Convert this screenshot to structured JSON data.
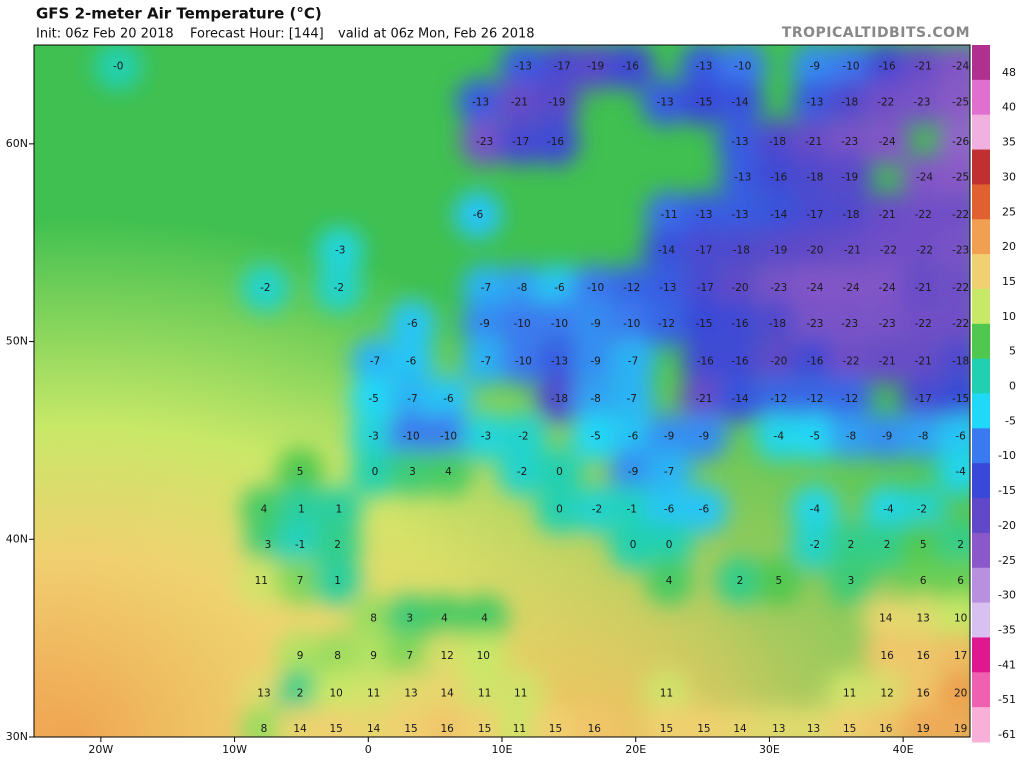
{
  "map": {
    "title": "GFS 2-meter Air Temperature (°C)",
    "init": "Init: 06z Feb 20 2018",
    "forecast_hour": "Forecast Hour: [144]",
    "valid": "valid at 06z Mon, Feb 26 2018",
    "watermark": "TROPICALTIDBITS.COM",
    "lonlim": [
      -25,
      45
    ],
    "latlim": [
      30,
      65
    ],
    "xticks": [
      {
        "value": -20,
        "label": "20W"
      },
      {
        "value": -10,
        "label": "10W"
      },
      0,
      {
        "value": 10,
        "label": "10E"
      },
      {
        "value": 20,
        "label": "20E"
      },
      {
        "value": 30,
        "label": "30E"
      },
      {
        "value": 40,
        "label": "40E"
      }
    ],
    "yticks": [
      {
        "value": 60,
        "label": "60N"
      },
      {
        "value": 50,
        "label": "50N"
      },
      {
        "value": 40,
        "label": "40N"
      },
      {
        "value": 30,
        "label": "30N"
      }
    ],
    "colorbar": {
      "ticks": [
        48,
        40,
        35,
        30,
        25,
        20,
        15,
        10,
        5,
        0,
        -5,
        -10,
        -15,
        -20,
        -25,
        -30,
        -35,
        -41,
        -51,
        -61
      ],
      "colors": [
        "#b03090",
        "#e070d0",
        "#f0b0e0",
        "#c03030",
        "#e06030",
        "#f0a050",
        "#f0d070",
        "#c8e868",
        "#50c850",
        "#20d0b0",
        "#20d8f8",
        "#3a7af0",
        "#3848d8",
        "#6048c8",
        "#8a58c8",
        "#b890e0",
        "#d8c0f0",
        "#e01890",
        "#f060b0",
        "#f8b0d8"
      ]
    },
    "stations": [
      {
        "lon": -18.7,
        "lat": 63.9,
        "t": {
          "value": 0,
          "label": "-0"
        }
      },
      {
        "lon": 11.6,
        "lat": 63.9,
        "t": -13
      },
      {
        "lon": 14.5,
        "lat": 63.9,
        "t": -17
      },
      {
        "lon": 17,
        "lat": 63.9,
        "t": -19
      },
      {
        "lon": 19.6,
        "lat": 63.9,
        "t": -16
      },
      {
        "lon": 25.1,
        "lat": 63.9,
        "t": -13
      },
      {
        "lon": 28,
        "lat": 63.9,
        "t": -10
      },
      {
        "lon": 33.4,
        "lat": 63.9,
        "t": -9
      },
      {
        "lon": 36.1,
        "lat": 63.9,
        "t": -10
      },
      {
        "lon": 38.8,
        "lat": 63.9,
        "t": -16
      },
      {
        "lon": 41.5,
        "lat": 63.9,
        "t": -21
      },
      {
        "lon": 44.3,
        "lat": 63.9,
        "t": -24
      },
      {
        "lon": 8.4,
        "lat": 62.1,
        "t": -13
      },
      {
        "lon": 11.3,
        "lat": 62.1,
        "t": -21
      },
      {
        "lon": 14.1,
        "lat": 62.1,
        "t": -19
      },
      {
        "lon": 22.2,
        "lat": 62.1,
        "t": -13
      },
      {
        "lon": 25.1,
        "lat": 62.1,
        "t": -15
      },
      {
        "lon": 27.8,
        "lat": 62.1,
        "t": -14
      },
      {
        "lon": 33.4,
        "lat": 62.1,
        "t": -13
      },
      {
        "lon": 36,
        "lat": 62.1,
        "t": -18
      },
      {
        "lon": 38.7,
        "lat": 62.1,
        "t": -22
      },
      {
        "lon": 41.4,
        "lat": 62.1,
        "t": -23
      },
      {
        "lon": 44.3,
        "lat": 62.1,
        "t": -25
      },
      {
        "lon": 8.7,
        "lat": 60.1,
        "t": -23
      },
      {
        "lon": 11.4,
        "lat": 60.1,
        "t": -17
      },
      {
        "lon": 14,
        "lat": 60.1,
        "t": -16
      },
      {
        "lon": 27.8,
        "lat": 60.1,
        "t": -13
      },
      {
        "lon": 30.6,
        "lat": 60.1,
        "t": -18
      },
      {
        "lon": 33.3,
        "lat": 60.1,
        "t": -21
      },
      {
        "lon": 36,
        "lat": 60.1,
        "t": -23
      },
      {
        "lon": 38.8,
        "lat": 60.1,
        "t": -24
      },
      {
        "lon": 44.3,
        "lat": 60.1,
        "t": -26
      },
      {
        "lon": 28,
        "lat": 58.3,
        "t": -13
      },
      {
        "lon": 30.7,
        "lat": 58.3,
        "t": -16
      },
      {
        "lon": 33.4,
        "lat": 58.3,
        "t": -18
      },
      {
        "lon": 36,
        "lat": 58.3,
        "t": -19
      },
      {
        "lon": 41.6,
        "lat": 58.3,
        "t": -24
      },
      {
        "lon": 44.3,
        "lat": 58.3,
        "t": -25
      },
      {
        "lon": 8.2,
        "lat": 56.4,
        "t": -6
      },
      {
        "lon": 22.5,
        "lat": 56.4,
        "t": -11
      },
      {
        "lon": 25.1,
        "lat": 56.4,
        "t": -13
      },
      {
        "lon": 27.8,
        "lat": 56.4,
        "t": -13
      },
      {
        "lon": 30.7,
        "lat": 56.4,
        "t": -14
      },
      {
        "lon": 33.4,
        "lat": 56.4,
        "t": -17
      },
      {
        "lon": 36.1,
        "lat": 56.4,
        "t": -18
      },
      {
        "lon": 38.8,
        "lat": 56.4,
        "t": -21
      },
      {
        "lon": 41.5,
        "lat": 56.4,
        "t": -22
      },
      {
        "lon": 44.3,
        "lat": 56.4,
        "t": -22
      },
      {
        "lon": -2.1,
        "lat": 54.6,
        "t": -3
      },
      {
        "lon": 22.3,
        "lat": 54.6,
        "t": -14
      },
      {
        "lon": 25.1,
        "lat": 54.6,
        "t": -17
      },
      {
        "lon": 27.9,
        "lat": 54.6,
        "t": -18
      },
      {
        "lon": 30.7,
        "lat": 54.6,
        "t": -19
      },
      {
        "lon": 33.4,
        "lat": 54.6,
        "t": -20
      },
      {
        "lon": 36.2,
        "lat": 54.6,
        "t": -21
      },
      {
        "lon": 38.9,
        "lat": 54.6,
        "t": -22
      },
      {
        "lon": 41.6,
        "lat": 54.6,
        "t": -22
      },
      {
        "lon": 44.3,
        "lat": 54.6,
        "t": -23
      },
      {
        "lon": -7.7,
        "lat": 52.7,
        "t": -2
      },
      {
        "lon": -2.2,
        "lat": 52.7,
        "t": -2
      },
      {
        "lon": 8.8,
        "lat": 52.7,
        "t": -7
      },
      {
        "lon": 11.5,
        "lat": 52.7,
        "t": -8
      },
      {
        "lon": 14.3,
        "lat": 52.7,
        "t": -6
      },
      {
        "lon": 17,
        "lat": 52.7,
        "t": -10
      },
      {
        "lon": 19.7,
        "lat": 52.7,
        "t": -12
      },
      {
        "lon": 22.4,
        "lat": 52.7,
        "t": -13
      },
      {
        "lon": 25.2,
        "lat": 52.7,
        "t": -17
      },
      {
        "lon": 27.8,
        "lat": 52.7,
        "t": -20
      },
      {
        "lon": 30.7,
        "lat": 52.7,
        "t": -23
      },
      {
        "lon": 33.4,
        "lat": 52.7,
        "t": -24
      },
      {
        "lon": 36.1,
        "lat": 52.7,
        "t": -24
      },
      {
        "lon": 38.8,
        "lat": 52.7,
        "t": -24
      },
      {
        "lon": 41.5,
        "lat": 52.7,
        "t": -21
      },
      {
        "lon": 44.3,
        "lat": 52.7,
        "t": -22
      },
      {
        "lon": 3.3,
        "lat": 50.9,
        "t": -6
      },
      {
        "lon": 8.7,
        "lat": 50.9,
        "t": -9
      },
      {
        "lon": 11.5,
        "lat": 50.9,
        "t": -10
      },
      {
        "lon": 14.3,
        "lat": 50.9,
        "t": -10
      },
      {
        "lon": 17,
        "lat": 50.9,
        "t": -9
      },
      {
        "lon": 19.7,
        "lat": 50.9,
        "t": -10
      },
      {
        "lon": 22.3,
        "lat": 50.9,
        "t": -12
      },
      {
        "lon": 25.1,
        "lat": 50.9,
        "t": -15
      },
      {
        "lon": 27.8,
        "lat": 50.9,
        "t": -16
      },
      {
        "lon": 30.6,
        "lat": 50.9,
        "t": -18
      },
      {
        "lon": 33.4,
        "lat": 50.9,
        "t": -23
      },
      {
        "lon": 36,
        "lat": 50.9,
        "t": -23
      },
      {
        "lon": 38.8,
        "lat": 50.9,
        "t": -23
      },
      {
        "lon": 41.5,
        "lat": 50.9,
        "t": -22
      },
      {
        "lon": 44.3,
        "lat": 50.9,
        "t": -22
      },
      {
        "lon": 0.5,
        "lat": 49,
        "t": -7
      },
      {
        "lon": 3.2,
        "lat": 49,
        "t": -6
      },
      {
        "lon": 8.8,
        "lat": 49,
        "t": -7
      },
      {
        "lon": 11.6,
        "lat": 49,
        "t": -10
      },
      {
        "lon": 14.3,
        "lat": 49,
        "t": -13
      },
      {
        "lon": 17,
        "lat": 49,
        "t": -9
      },
      {
        "lon": 19.8,
        "lat": 49,
        "t": -7
      },
      {
        "lon": 25.2,
        "lat": 49,
        "t": -16
      },
      {
        "lon": 27.8,
        "lat": 49,
        "t": -16
      },
      {
        "lon": 30.7,
        "lat": 49,
        "t": -20
      },
      {
        "lon": 33.4,
        "lat": 49,
        "t": -16
      },
      {
        "lon": 36.1,
        "lat": 49,
        "t": -22
      },
      {
        "lon": 38.8,
        "lat": 49,
        "t": -21
      },
      {
        "lon": 41.5,
        "lat": 49,
        "t": -21
      },
      {
        "lon": 44.3,
        "lat": 49,
        "t": -18
      },
      {
        "lon": 0.4,
        "lat": 47.1,
        "t": -5
      },
      {
        "lon": 3.3,
        "lat": 47.1,
        "t": -7
      },
      {
        "lon": 6,
        "lat": 47.1,
        "t": -6
      },
      {
        "lon": 14.3,
        "lat": 47.1,
        "t": -18
      },
      {
        "lon": 17,
        "lat": 47.1,
        "t": -8
      },
      {
        "lon": 19.7,
        "lat": 47.1,
        "t": -7
      },
      {
        "lon": 25.1,
        "lat": 47.1,
        "t": -21
      },
      {
        "lon": 27.8,
        "lat": 47.1,
        "t": -14
      },
      {
        "lon": 30.7,
        "lat": 47.1,
        "t": -12
      },
      {
        "lon": 33.4,
        "lat": 47.1,
        "t": -12
      },
      {
        "lon": 36,
        "lat": 47.1,
        "t": -12
      },
      {
        "lon": 41.5,
        "lat": 47.1,
        "t": -17
      },
      {
        "lon": 44.3,
        "lat": 47.1,
        "t": -15
      },
      {
        "lon": 0.4,
        "lat": 45.2,
        "t": -3
      },
      {
        "lon": 3.2,
        "lat": 45.2,
        "t": -10
      },
      {
        "lon": 6,
        "lat": 45.2,
        "t": -10
      },
      {
        "lon": 8.8,
        "lat": 45.2,
        "t": -3
      },
      {
        "lon": 11.6,
        "lat": 45.2,
        "t": -2
      },
      {
        "lon": 17,
        "lat": 45.2,
        "t": -5
      },
      {
        "lon": 19.8,
        "lat": 45.2,
        "t": -6
      },
      {
        "lon": 22.5,
        "lat": 45.2,
        "t": -9
      },
      {
        "lon": 25.1,
        "lat": 45.2,
        "t": -9
      },
      {
        "lon": 30.7,
        "lat": 45.2,
        "t": -4
      },
      {
        "lon": 33.4,
        "lat": 45.2,
        "t": -5
      },
      {
        "lon": 36.1,
        "lat": 45.2,
        "t": -8
      },
      {
        "lon": 38.8,
        "lat": 45.2,
        "t": -9
      },
      {
        "lon": 41.5,
        "lat": 45.2,
        "t": -8
      },
      {
        "lon": 44.3,
        "lat": 45.2,
        "t": -6
      },
      {
        "lon": -5.1,
        "lat": 43.4,
        "t": 5
      },
      {
        "lon": 0.5,
        "lat": 43.4,
        "t": 0
      },
      {
        "lon": 3.3,
        "lat": 43.4,
        "t": 3
      },
      {
        "lon": 6,
        "lat": 43.4,
        "t": 4
      },
      {
        "lon": 11.5,
        "lat": 43.4,
        "t": -2
      },
      {
        "lon": 14.3,
        "lat": 43.4,
        "t": 0
      },
      {
        "lon": 19.8,
        "lat": 43.4,
        "t": -9
      },
      {
        "lon": 22.5,
        "lat": 43.4,
        "t": -7
      },
      {
        "lon": 44.3,
        "lat": 43.4,
        "t": -4
      },
      {
        "lon": -7.8,
        "lat": 41.5,
        "t": 4
      },
      {
        "lon": -5,
        "lat": 41.5,
        "t": 1
      },
      {
        "lon": -2.2,
        "lat": 41.5,
        "t": 1
      },
      {
        "lon": 14.3,
        "lat": 41.5,
        "t": 0
      },
      {
        "lon": 17.1,
        "lat": 41.5,
        "t": -2
      },
      {
        "lon": 19.7,
        "lat": 41.5,
        "t": -1
      },
      {
        "lon": 22.5,
        "lat": 41.5,
        "t": -6
      },
      {
        "lon": 25.1,
        "lat": 41.5,
        "t": -6
      },
      {
        "lon": 33.4,
        "lat": 41.5,
        "t": -4
      },
      {
        "lon": 38.9,
        "lat": 41.5,
        "t": -4
      },
      {
        "lon": 41.4,
        "lat": 41.5,
        "t": -2
      },
      {
        "lon": -7.5,
        "lat": 39.7,
        "t": 3
      },
      {
        "lon": -5.1,
        "lat": 39.7,
        "t": -1
      },
      {
        "lon": -2.3,
        "lat": 39.7,
        "t": 2
      },
      {
        "lon": 19.8,
        "lat": 39.7,
        "t": 0
      },
      {
        "lon": 22.5,
        "lat": 39.7,
        "t": 0
      },
      {
        "lon": 33.4,
        "lat": 39.7,
        "t": -2
      },
      {
        "lon": 36.1,
        "lat": 39.7,
        "t": 2
      },
      {
        "lon": 38.8,
        "lat": 39.7,
        "t": 2
      },
      {
        "lon": 41.5,
        "lat": 39.7,
        "t": 5
      },
      {
        "lon": 44.3,
        "lat": 39.7,
        "t": 2
      },
      {
        "lon": -8,
        "lat": 37.9,
        "t": 11
      },
      {
        "lon": -5.1,
        "lat": 37.9,
        "t": 7
      },
      {
        "lon": -2.3,
        "lat": 37.9,
        "t": 1
      },
      {
        "lon": 22.5,
        "lat": 37.9,
        "t": 4
      },
      {
        "lon": 27.8,
        "lat": 37.9,
        "t": 2
      },
      {
        "lon": 30.7,
        "lat": 37.9,
        "t": 5
      },
      {
        "lon": 36.1,
        "lat": 37.9,
        "t": 3
      },
      {
        "lon": 41.5,
        "lat": 37.9,
        "t": 6
      },
      {
        "lon": 44.3,
        "lat": 37.9,
        "t": 6
      },
      {
        "lon": 0.4,
        "lat": 36,
        "t": 8
      },
      {
        "lon": 3.1,
        "lat": 36,
        "t": 3
      },
      {
        "lon": 5.7,
        "lat": 36,
        "t": 4
      },
      {
        "lon": 8.7,
        "lat": 36,
        "t": 4
      },
      {
        "lon": 38.7,
        "lat": 36,
        "t": 14
      },
      {
        "lon": 41.5,
        "lat": 36,
        "t": 13
      },
      {
        "lon": 44.3,
        "lat": 36,
        "t": 10
      },
      {
        "lon": -5.1,
        "lat": 34.1,
        "t": 9
      },
      {
        "lon": -2.3,
        "lat": 34.1,
        "t": 8
      },
      {
        "lon": 0.4,
        "lat": 34.1,
        "t": 9
      },
      {
        "lon": 3.1,
        "lat": 34.1,
        "t": 7
      },
      {
        "lon": 5.9,
        "lat": 34.1,
        "t": 12
      },
      {
        "lon": 8.6,
        "lat": 34.1,
        "t": 10
      },
      {
        "lon": 38.8,
        "lat": 34.1,
        "t": 16
      },
      {
        "lon": 41.5,
        "lat": 34.1,
        "t": 16
      },
      {
        "lon": 44.3,
        "lat": 34.1,
        "t": 17
      },
      {
        "lon": -7.8,
        "lat": 32.2,
        "t": 13
      },
      {
        "lon": -5.1,
        "lat": 32.2,
        "t": 2
      },
      {
        "lon": -2.4,
        "lat": 32.2,
        "t": 10
      },
      {
        "lon": 0.4,
        "lat": 32.2,
        "t": 11
      },
      {
        "lon": 3.2,
        "lat": 32.2,
        "t": 13
      },
      {
        "lon": 5.9,
        "lat": 32.2,
        "t": 14
      },
      {
        "lon": 8.7,
        "lat": 32.2,
        "t": 11
      },
      {
        "lon": 11.4,
        "lat": 32.2,
        "t": 11
      },
      {
        "lon": 22.3,
        "lat": 32.2,
        "t": 11
      },
      {
        "lon": 36,
        "lat": 32.2,
        "t": 11
      },
      {
        "lon": 38.8,
        "lat": 32.2,
        "t": 12
      },
      {
        "lon": 41.5,
        "lat": 32.2,
        "t": 16
      },
      {
        "lon": 44.3,
        "lat": 32.2,
        "t": 20
      },
      {
        "lon": -7.8,
        "lat": 30.4,
        "t": 8
      },
      {
        "lon": -5.1,
        "lat": 30.4,
        "t": 14
      },
      {
        "lon": -2.4,
        "lat": 30.4,
        "t": 15
      },
      {
        "lon": 0.4,
        "lat": 30.4,
        "t": 14
      },
      {
        "lon": 3.2,
        "lat": 30.4,
        "t": 15
      },
      {
        "lon": 5.9,
        "lat": 30.4,
        "t": 16
      },
      {
        "lon": 8.7,
        "lat": 30.4,
        "t": 15
      },
      {
        "lon": 11.3,
        "lat": 30.4,
        "t": 11
      },
      {
        "lon": 14,
        "lat": 30.4,
        "t": 15
      },
      {
        "lon": 16.9,
        "lat": 30.4,
        "t": 16
      },
      {
        "lon": 22.3,
        "lat": 30.4,
        "t": 15
      },
      {
        "lon": 25.1,
        "lat": 30.4,
        "t": 15
      },
      {
        "lon": 27.8,
        "lat": 30.4,
        "t": 14
      },
      {
        "lon": 30.7,
        "lat": 30.4,
        "t": 13
      },
      {
        "lon": 33.3,
        "lat": 30.4,
        "t": 13
      },
      {
        "lon": 36,
        "lat": 30.4,
        "t": 15
      },
      {
        "lon": 38.7,
        "lat": 30.4,
        "t": 16
      },
      {
        "lon": 41.5,
        "lat": 30.4,
        "t": 19
      },
      {
        "lon": 44.3,
        "lat": 30.4,
        "t": 19
      }
    ]
  }
}
